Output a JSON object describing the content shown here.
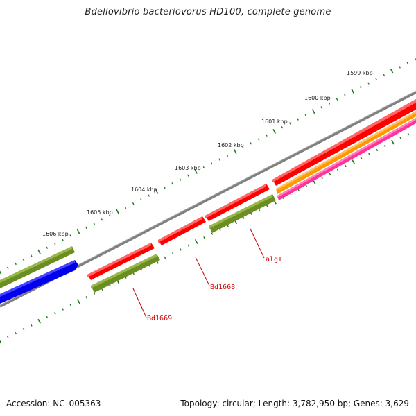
{
  "header": {
    "title": "Bdellovibrio bacteriovorus HD100, complete genome"
  },
  "footer": {
    "accession": "Accession: NC_005363",
    "summary": "Topology: circular; Length: 3,782,950 bp; Genes: 3,629"
  },
  "ruler": {
    "tick_color": "#1e7a1e",
    "labels": [
      "1606 kbp",
      "1605 kbp",
      "1604 kbp",
      "1603 kbp",
      "1602 kbp",
      "1601 kbp",
      "1600 kbp",
      "1599 kbp"
    ]
  },
  "backbone": {
    "color": "#808080"
  },
  "genes": [
    {
      "name": "Bd1669",
      "color": "#ff0000",
      "kind": "CDS"
    },
    {
      "name": "Bd1668",
      "color": "#ff0000",
      "kind": "CDS"
    },
    {
      "name": "algI",
      "color": "#ff0000",
      "kind": "CDS"
    }
  ],
  "legend_colors": {
    "forward_cds": "#ff0000",
    "reverse_cds": "#0000ee",
    "gene_feature": "#6b8e23",
    "orange_feature": "#ff9900",
    "pink_feature": "#ff3399",
    "label_line": "#cc0000"
  }
}
